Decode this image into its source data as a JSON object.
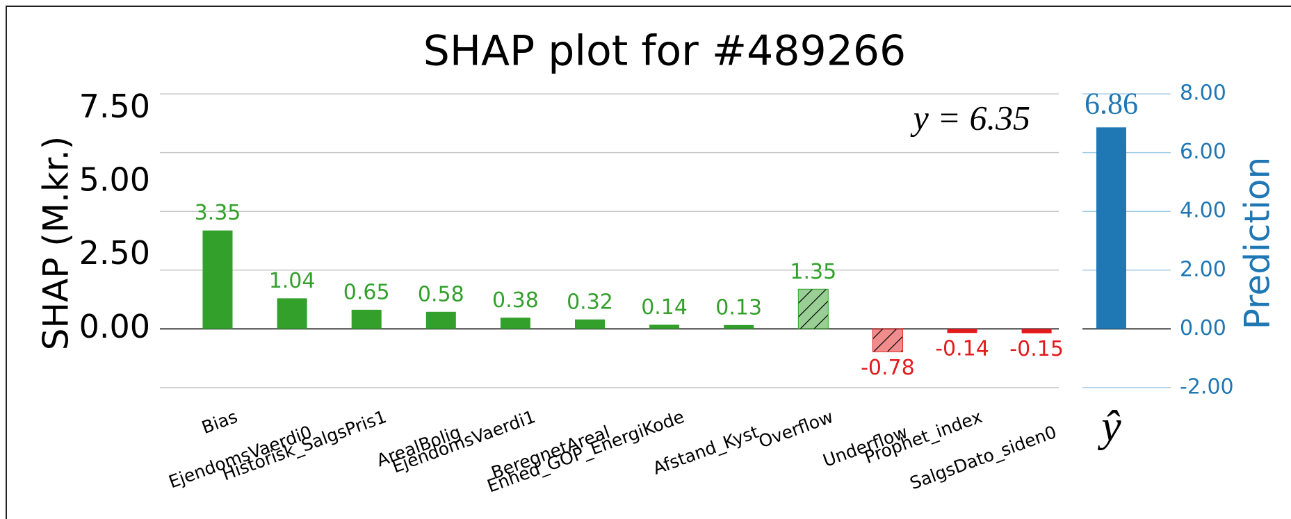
{
  "chart_data": [
    {
      "type": "bar",
      "title": "SHAP plot for #489266",
      "ylabel": "SHAP (M.kr.)",
      "annotation": "y = 6.35",
      "categories": [
        "Bias",
        "EjendomsVaerdi0",
        "Historisk_SalgsPris1",
        "ArealBolig",
        "EjendomsVaerdi1",
        "BeregnetAreal",
        "Enhed_GOP_EnergiKode",
        "Afstand_Kyst",
        "Overflow",
        "Underflow",
        "Prophet_index",
        "SalgsDato_siden0"
      ],
      "values": [
        3.35,
        1.04,
        0.65,
        0.58,
        0.38,
        0.32,
        0.14,
        0.13,
        1.35,
        -0.78,
        -0.14,
        -0.15
      ],
      "hatched": [
        false,
        false,
        false,
        false,
        false,
        false,
        false,
        false,
        true,
        true,
        false,
        false
      ],
      "positive_color": "#33a02c",
      "negative_color": "#e31a1c",
      "ylim": [
        -2.5,
        8.5
      ],
      "yticks": [
        {
          "value": 0,
          "label": "0.00"
        },
        {
          "value": 2.5,
          "label": "2.50"
        },
        {
          "value": 5,
          "label": "5.00"
        },
        {
          "value": 7.5,
          "label": "7.50"
        }
      ]
    },
    {
      "type": "bar",
      "ylabel": "Prediction",
      "categories": [
        "ŷ"
      ],
      "values": [
        6.86
      ],
      "color": "#1f77b4",
      "ylim": [
        -2.5,
        8.5
      ],
      "grid": true,
      "yticks": [
        {
          "value": -2,
          "label": "-2.00"
        },
        {
          "value": 0,
          "label": "0.00"
        },
        {
          "value": 2,
          "label": "2.00"
        },
        {
          "value": 4,
          "label": "4.00"
        },
        {
          "value": 6,
          "label": "6.00"
        },
        {
          "value": 8,
          "label": "8.00"
        }
      ]
    }
  ]
}
